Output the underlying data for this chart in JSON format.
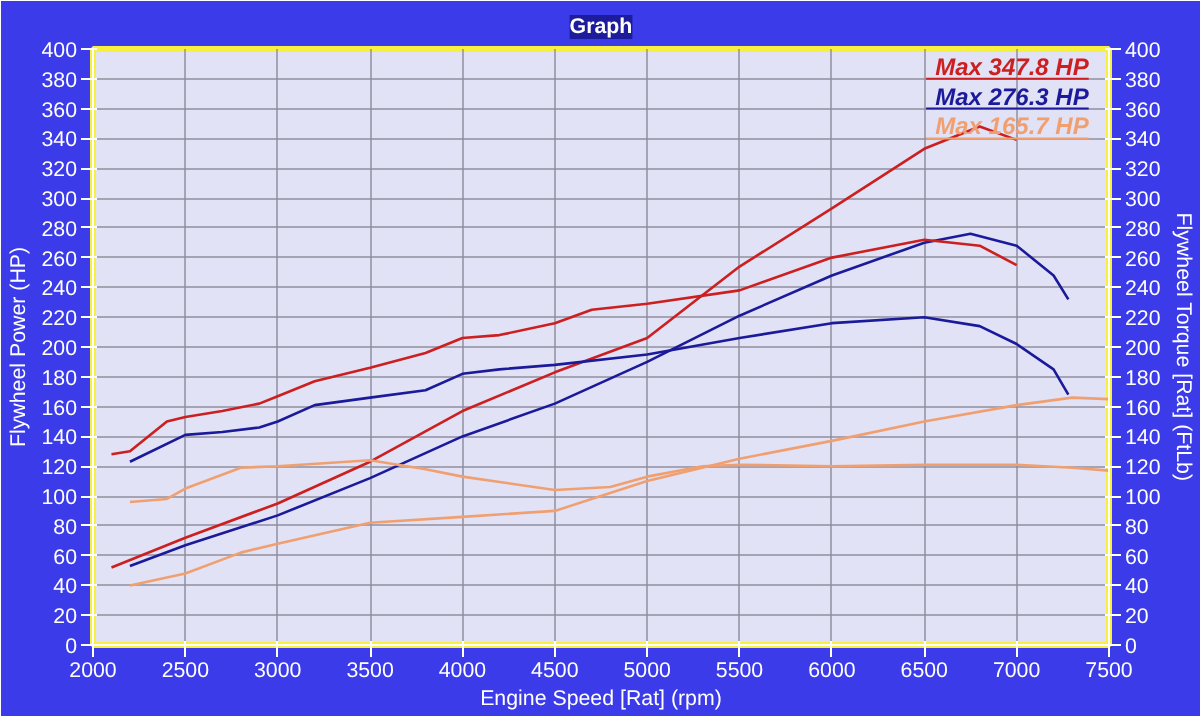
{
  "chart_data": {
    "type": "line",
    "title": "Graph",
    "xlabel": "Engine Speed [Rat] (rpm)",
    "ylabel": "Flywheel Power (HP)",
    "y2label": "Flywheel Torque [Rat] (FtLb)",
    "xlim": [
      2000,
      7500
    ],
    "xticks": [
      2000,
      2500,
      3000,
      3500,
      4000,
      4500,
      5000,
      5500,
      6000,
      6500,
      7000,
      7500
    ],
    "ylim": [
      0,
      400
    ],
    "yticks": [
      0,
      20,
      40,
      60,
      80,
      100,
      120,
      140,
      160,
      180,
      200,
      220,
      240,
      260,
      280,
      300,
      320,
      340,
      360,
      380,
      400
    ],
    "y2lim": [
      0,
      400
    ],
    "y2ticks": [
      0,
      20,
      40,
      60,
      80,
      100,
      120,
      140,
      160,
      180,
      200,
      220,
      240,
      260,
      280,
      300,
      320,
      340,
      360,
      380,
      400
    ],
    "grid": true,
    "legend": "top right",
    "line_style": "solid",
    "series": [
      {
        "name": "Max 347.8 HP",
        "color": "#cc1f1f",
        "x": [
          2100,
          2500,
          3000,
          3500,
          4000,
          4500,
          5000,
          5500,
          6000,
          6500,
          6800,
          7000
        ],
        "values": [
          52,
          72,
          95,
          123,
          157,
          183,
          206,
          254,
          293,
          333,
          348,
          339
        ]
      },
      {
        "name": "Max 276.3 HP",
        "color": "#1a1a9a",
        "x": [
          2200,
          2500,
          3000,
          3500,
          4000,
          4500,
          5000,
          5500,
          6000,
          6500,
          6750,
          7000,
          7200,
          7280
        ],
        "values": [
          53,
          67,
          87,
          112,
          140,
          162,
          190,
          221,
          248,
          270,
          276,
          268,
          248,
          232
        ]
      },
      {
        "name": "Max 165.7 HP",
        "color": "#f0a070",
        "x": [
          2200,
          2500,
          2800,
          3000,
          3500,
          4000,
          4500,
          5000,
          5500,
          6000,
          6500,
          7000,
          7300,
          7500
        ],
        "values": [
          40,
          48,
          62,
          68,
          82,
          86,
          90,
          110,
          125,
          137,
          150,
          161,
          166,
          165
        ]
      },
      {
        "color": "#cc1f1f",
        "x": [
          2100,
          2200,
          2400,
          2500,
          2700,
          2900,
          3000,
          3200,
          3500,
          3800,
          4000,
          4200,
          4500,
          4700,
          5000,
          5500,
          6000,
          6500,
          6800,
          7000
        ],
        "values": [
          128,
          130,
          150,
          153,
          157,
          162,
          167,
          177,
          186,
          196,
          206,
          208,
          216,
          225,
          229,
          238,
          260,
          272,
          268,
          255
        ]
      },
      {
        "color": "#1a1a9a",
        "x": [
          2200,
          2500,
          2700,
          2900,
          3000,
          3200,
          3500,
          3800,
          4000,
          4200,
          4500,
          5000,
          5500,
          6000,
          6500,
          6800,
          7000,
          7200,
          7280
        ],
        "values": [
          123,
          141,
          143,
          146,
          150,
          161,
          166,
          171,
          182,
          185,
          188,
          195,
          206,
          216,
          220,
          214,
          202,
          185,
          168
        ]
      },
      {
        "color": "#f0a070",
        "x": [
          2200,
          2400,
          2500,
          2800,
          3000,
          3500,
          3800,
          4000,
          4500,
          4800,
          5000,
          5300,
          5500,
          6000,
          6500,
          7000,
          7300,
          7500
        ],
        "values": [
          96,
          98,
          105,
          119,
          120,
          124,
          118,
          113,
          104,
          106,
          113,
          120,
          121,
          120,
          121,
          121,
          119,
          117
        ]
      }
    ]
  }
}
